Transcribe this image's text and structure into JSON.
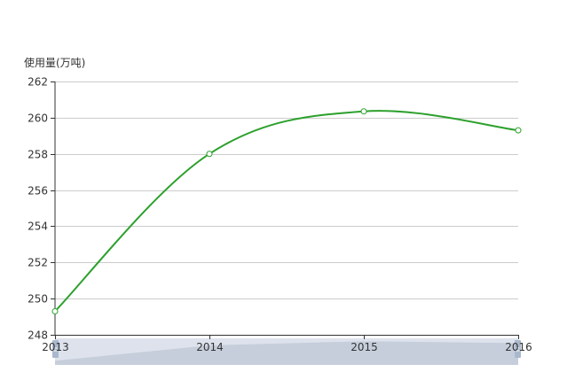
{
  "chart_data": {
    "type": "line",
    "ylabel": "使用量(万吨)",
    "categories": [
      "2013",
      "2014",
      "2015",
      "2016"
    ],
    "series": [
      {
        "values": [
          249.3,
          258.0,
          260.35,
          259.3
        ]
      }
    ],
    "ylim": [
      248,
      262
    ],
    "yticks": [
      248,
      250,
      252,
      254,
      256,
      258,
      260,
      262
    ],
    "smooth": true,
    "grid": true,
    "legend": "none",
    "datazoom_slider": true,
    "colors": {
      "line": "#2ca02c",
      "marker_fill": "#ffffff",
      "grid": "#cccccc",
      "axis": "#333333",
      "slider_bg": "#d5dbe5",
      "slider_fill": "#c9d1de",
      "slider_handle": "#a6b6cc"
    }
  }
}
